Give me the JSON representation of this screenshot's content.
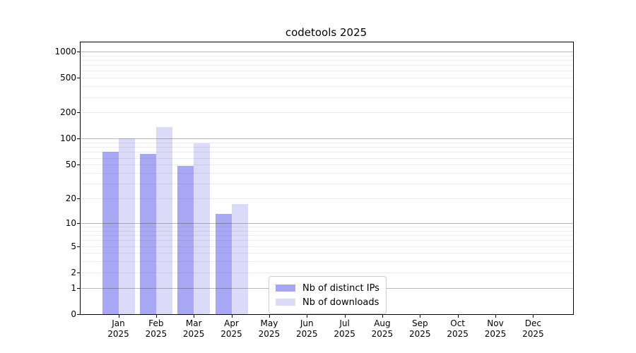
{
  "title": "codetools 2025",
  "chart_data": {
    "type": "bar",
    "title": "codetools 2025",
    "categories": [
      "Jan",
      "Feb",
      "Mar",
      "Apr",
      "May",
      "Jun",
      "Jul",
      "Aug",
      "Sep",
      "Oct",
      "Nov",
      "Dec"
    ],
    "year": "2025",
    "series": [
      {
        "name": "Nb of distinct IPs",
        "color": "#a7a7f3",
        "values": [
          70,
          67,
          48,
          13,
          null,
          null,
          null,
          null,
          null,
          null,
          null,
          null
        ]
      },
      {
        "name": "Nb of downloads",
        "color": "#dbdbf9",
        "values": [
          100,
          137,
          88,
          17,
          null,
          null,
          null,
          null,
          null,
          null,
          null,
          null
        ]
      }
    ],
    "yscale": "log1p",
    "y_ticks": [
      0,
      1,
      2,
      5,
      10,
      20,
      50,
      100,
      200,
      500,
      1000
    ],
    "ylim": [
      0,
      1255
    ],
    "xlabel": "",
    "ylabel": "",
    "grid": "horizontal",
    "legend_position": "inside lower-center"
  }
}
